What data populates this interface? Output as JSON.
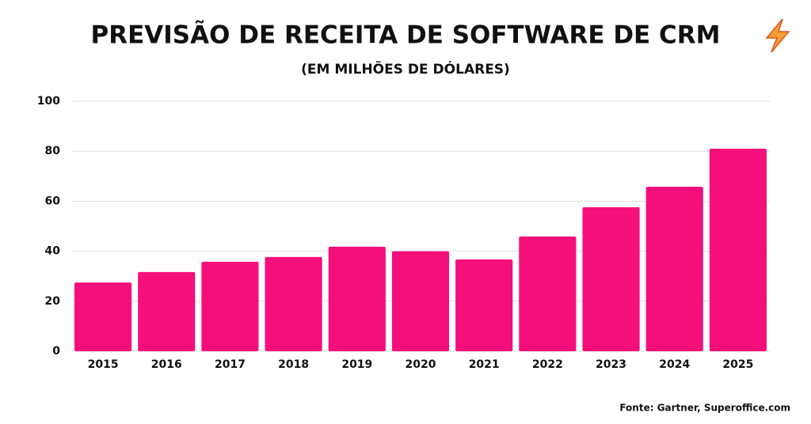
{
  "chart_data": {
    "type": "bar",
    "title": "PREVISÃO DE RECEITA DE SOFTWARE DE CRM",
    "subtitle": "(EM MILHÕES DE DÓLARES)",
    "source": "Fonte: Gartner, Superoffice.com",
    "categories": [
      "2015",
      "2016",
      "2017",
      "2018",
      "2019",
      "2020",
      "2021",
      "2022",
      "2023",
      "2024",
      "2025"
    ],
    "values": [
      27.5,
      31.7,
      35.8,
      37.7,
      41.8,
      40,
      36.7,
      45.9,
      57.6,
      65.8,
      81
    ],
    "color": "#f50f7a",
    "ylim": [
      0,
      100
    ],
    "yticks": [
      0,
      20,
      40,
      60,
      80,
      100
    ],
    "grid": true
  }
}
